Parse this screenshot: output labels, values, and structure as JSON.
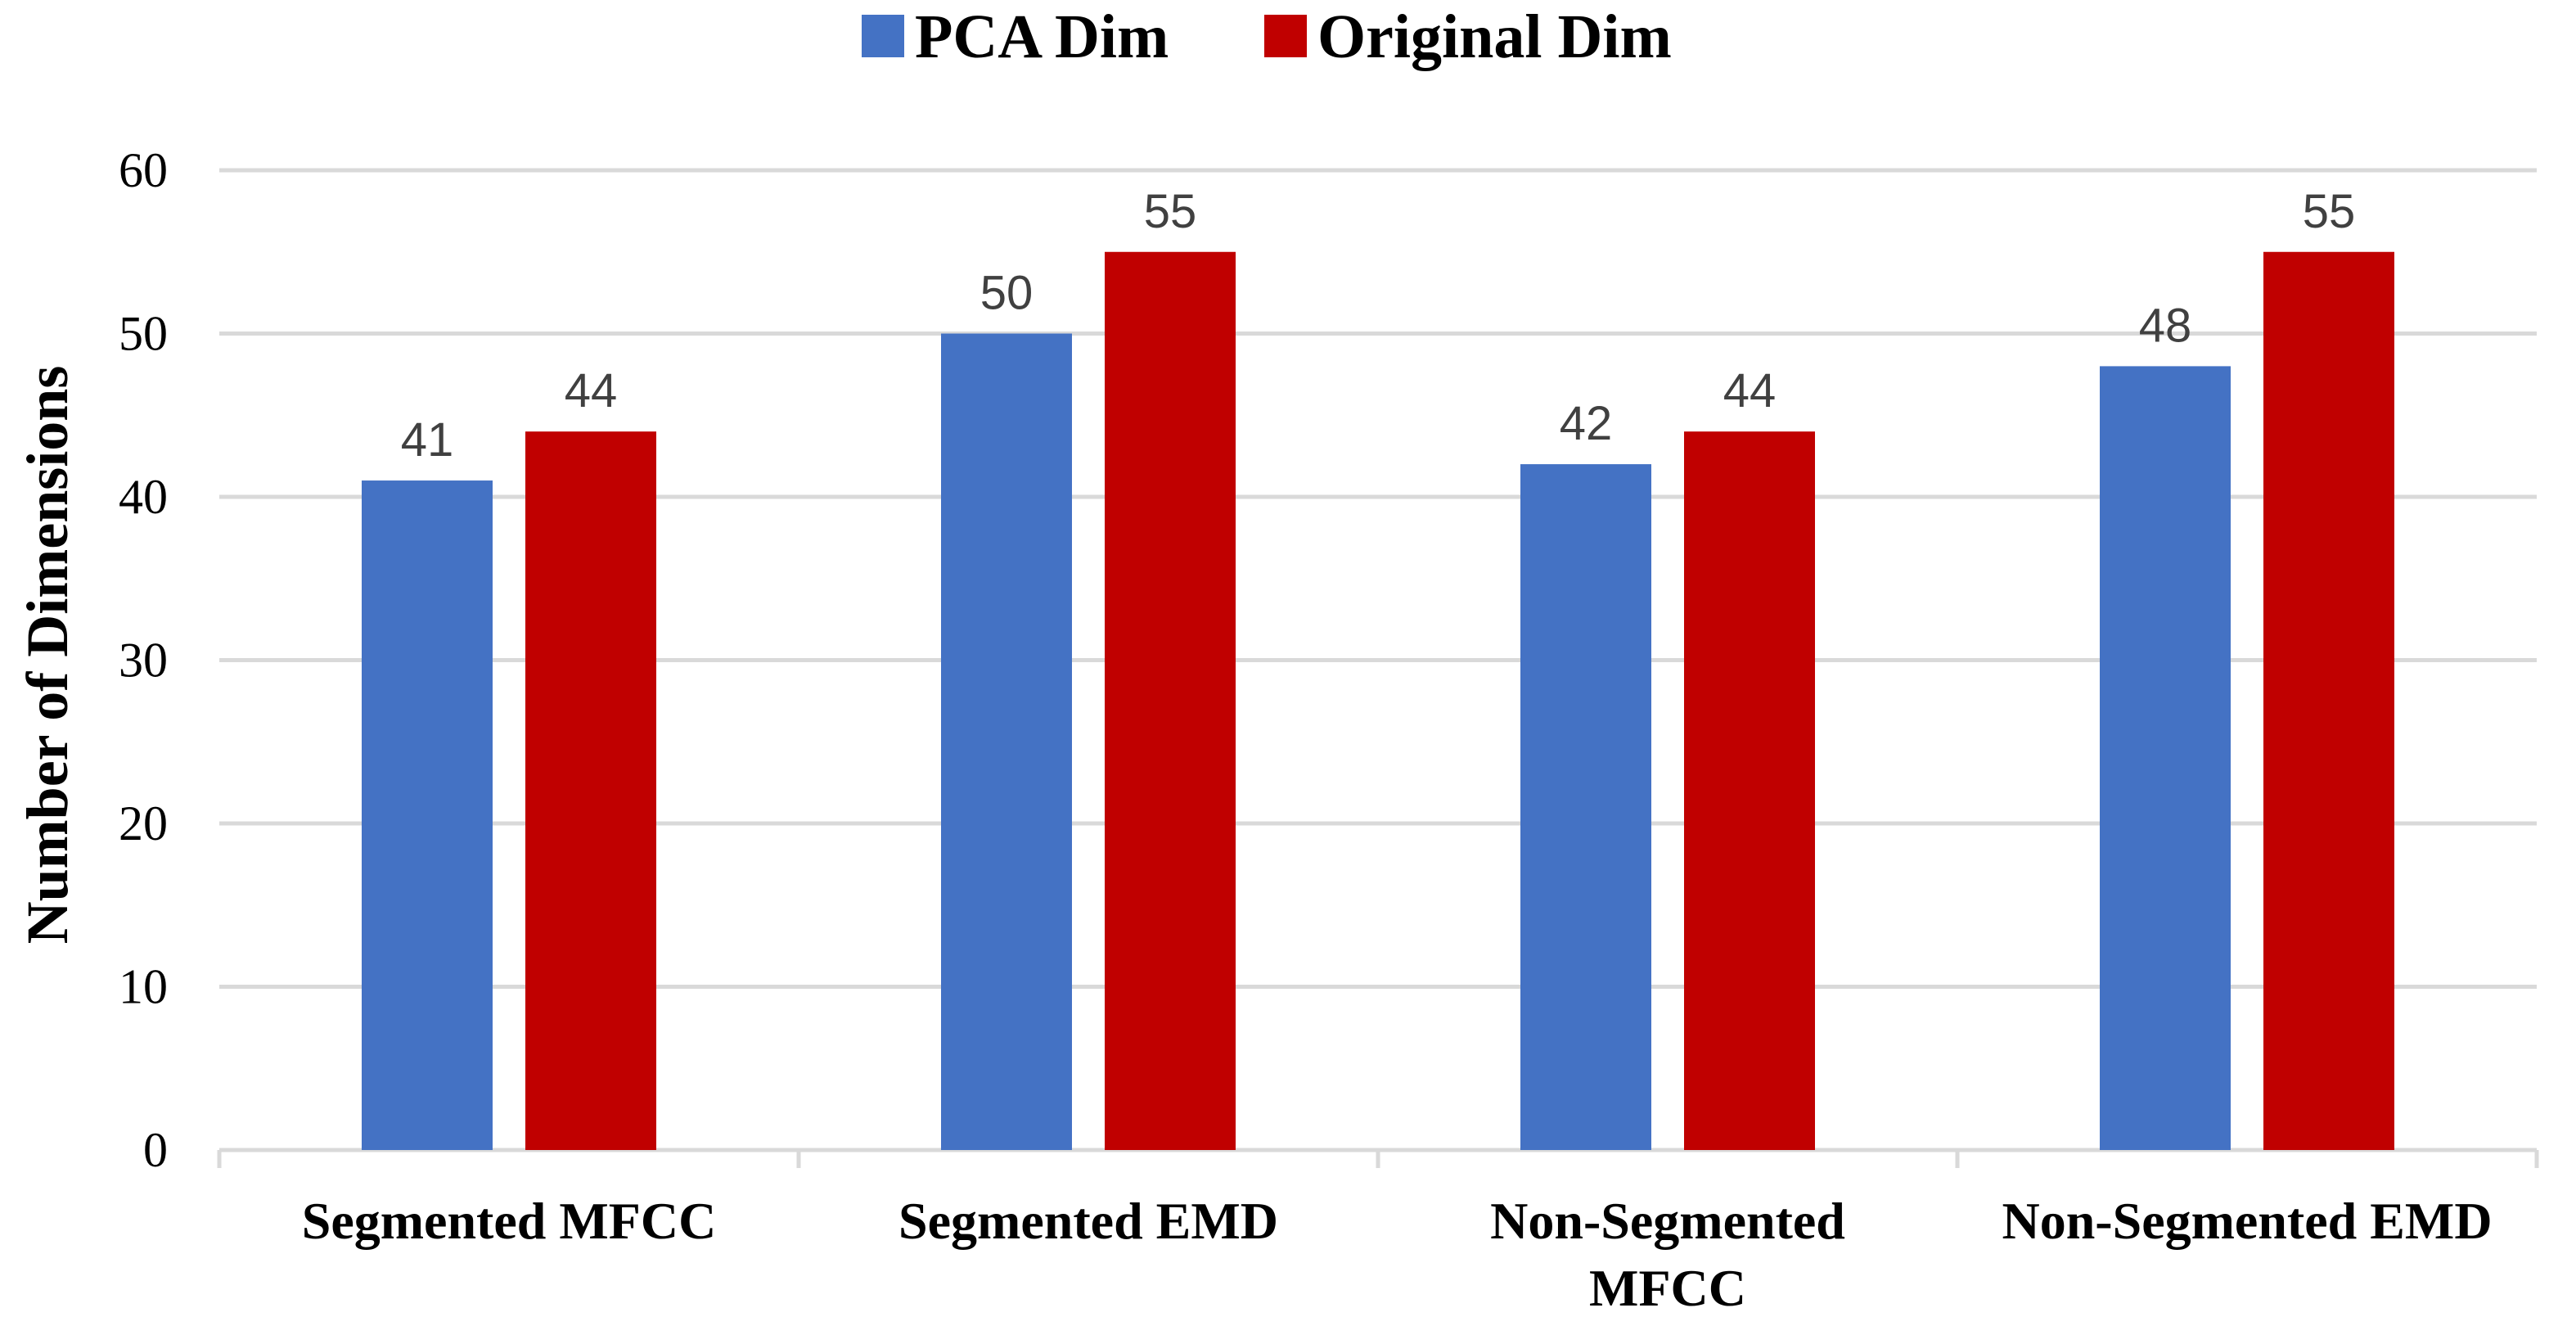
{
  "chart_data": {
    "type": "bar",
    "title": "",
    "xlabel": "",
    "ylabel": "Number of  Dimensions",
    "ylim": [
      0,
      60
    ],
    "yticks": [
      0,
      10,
      20,
      30,
      40,
      50,
      60
    ],
    "grid": true,
    "legend_position": "top-center",
    "categories": [
      [
        "Segmented MFCC"
      ],
      [
        "Segmented EMD"
      ],
      [
        "Non-Segmented",
        "MFCC"
      ],
      [
        "Non-Segmented EMD"
      ]
    ],
    "series": [
      {
        "name": "PCA Dim",
        "color": "#4472C4",
        "values": [
          41,
          50,
          42,
          48
        ]
      },
      {
        "name": "Original Dim",
        "color": "#C00000",
        "values": [
          44,
          55,
          44,
          55
        ]
      }
    ],
    "data_labels": true
  },
  "colors": {
    "gridline": "#D9D9D9",
    "axis": "#D9D9D9",
    "data_label": "#404040"
  }
}
